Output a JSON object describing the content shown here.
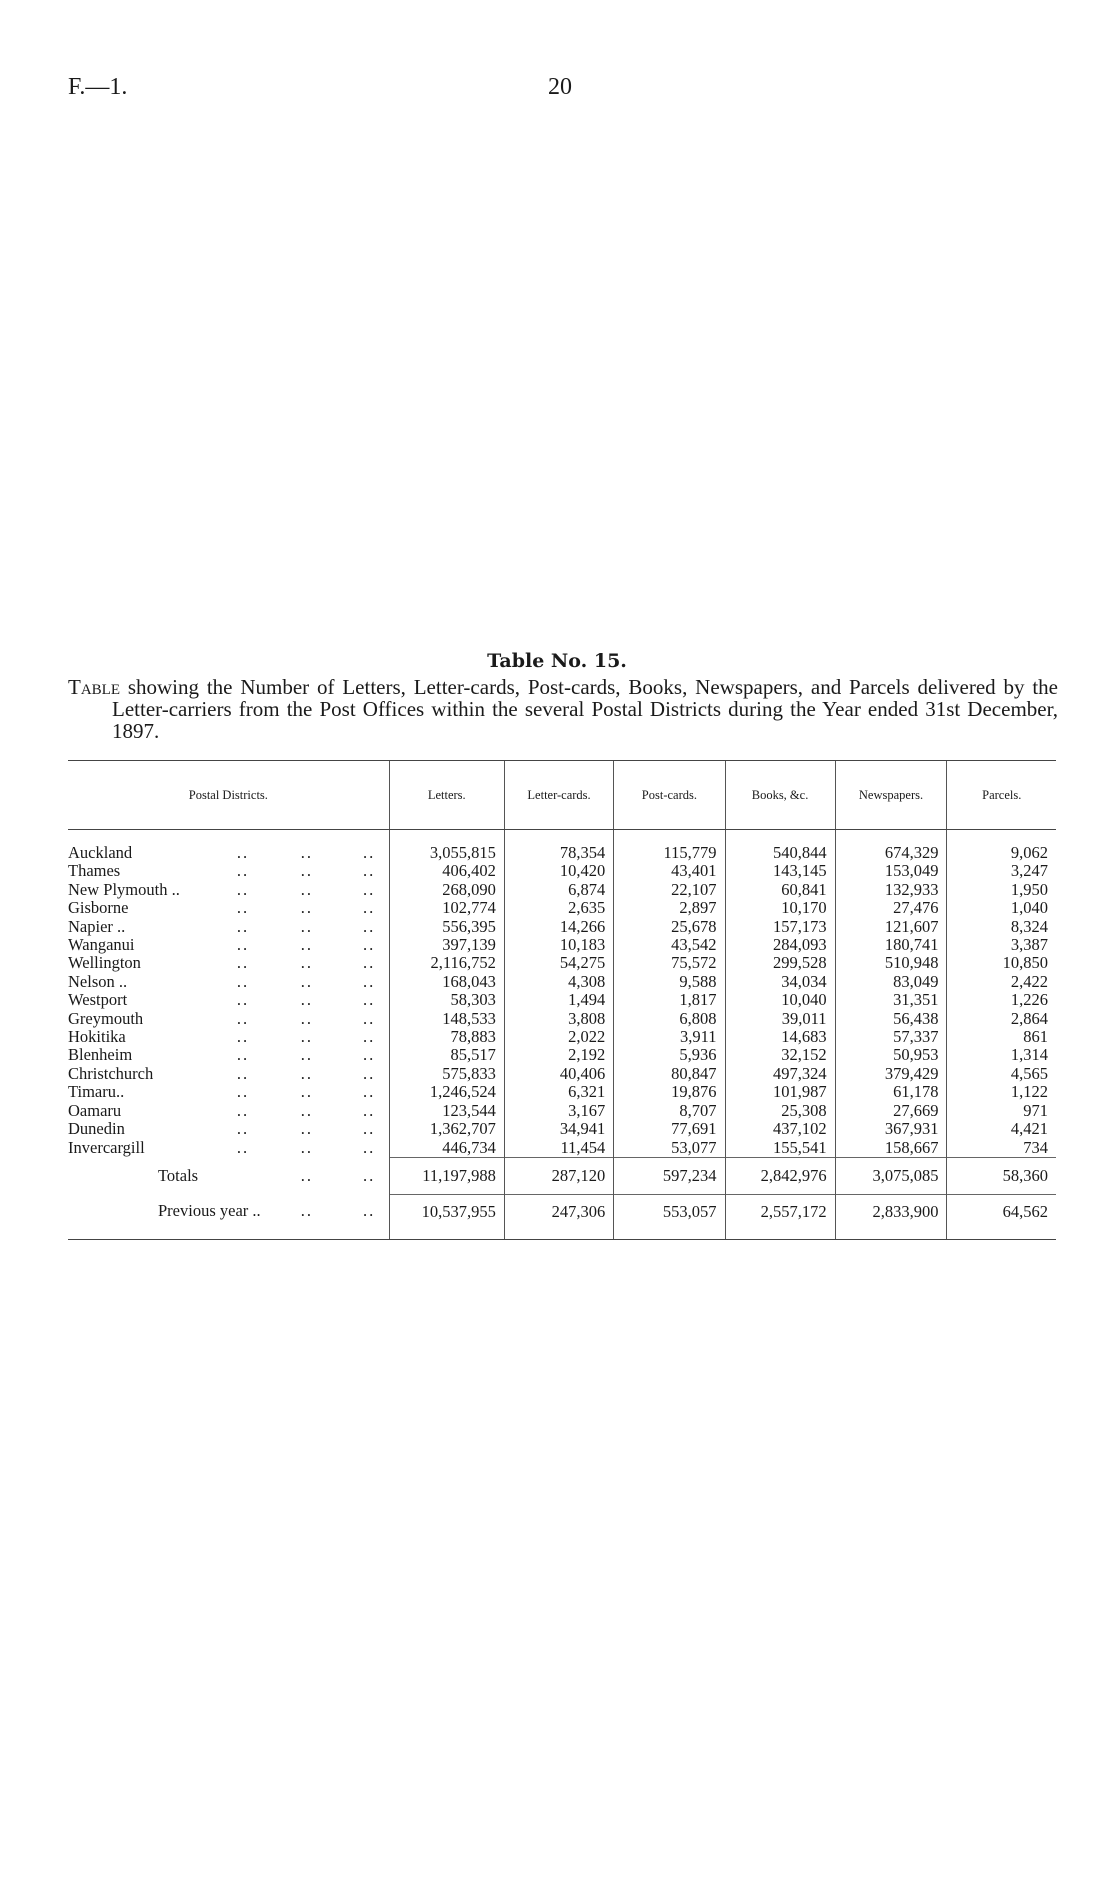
{
  "header": {
    "ref": "F.—1.",
    "page": "20"
  },
  "table_title": "Table No. 15.",
  "caption": {
    "lead": "Table",
    "text": " showing the Number of Letters, Letter-cards, Post-cards, Books, Newspapers, and Parcels delivered by the Letter-carriers from the Post Offices within the several Postal Districts during the Year ended 31st December, 1897."
  },
  "columns": [
    "Postal Districts.",
    "Letters.",
    "Letter-cards.",
    "Post-cards.",
    "Books, &c.",
    "Newspapers.",
    "Parcels."
  ],
  "rows": [
    {
      "district": "Auckland",
      "values": [
        "3,055,815",
        "78,354",
        "115,779",
        "540,844",
        "674,329",
        "9,062"
      ]
    },
    {
      "district": "Thames",
      "values": [
        "406,402",
        "10,420",
        "43,401",
        "143,145",
        "153,049",
        "3,247"
      ]
    },
    {
      "district": "New Plymouth ..",
      "values": [
        "268,090",
        "6,874",
        "22,107",
        "60,841",
        "132,933",
        "1,950"
      ]
    },
    {
      "district": "Gisborne",
      "values": [
        "102,774",
        "2,635",
        "2,897",
        "10,170",
        "27,476",
        "1,040"
      ]
    },
    {
      "district": "Napier ..",
      "values": [
        "556,395",
        "14,266",
        "25,678",
        "157,173",
        "121,607",
        "8,324"
      ]
    },
    {
      "district": "Wanganui",
      "values": [
        "397,139",
        "10,183",
        "43,542",
        "284,093",
        "180,741",
        "3,387"
      ]
    },
    {
      "district": "Wellington",
      "values": [
        "2,116,752",
        "54,275",
        "75,572",
        "299,528",
        "510,948",
        "10,850"
      ]
    },
    {
      "district": "Nelson ..",
      "values": [
        "168,043",
        "4,308",
        "9,588",
        "34,034",
        "83,049",
        "2,422"
      ]
    },
    {
      "district": "Westport",
      "values": [
        "58,303",
        "1,494",
        "1,817",
        "10,040",
        "31,351",
        "1,226"
      ]
    },
    {
      "district": "Greymouth",
      "values": [
        "148,533",
        "3,808",
        "6,808",
        "39,011",
        "56,438",
        "2,864"
      ]
    },
    {
      "district": "Hokitika",
      "values": [
        "78,883",
        "2,022",
        "3,911",
        "14,683",
        "57,337",
        "861"
      ]
    },
    {
      "district": "Blenheim",
      "values": [
        "85,517",
        "2,192",
        "5,936",
        "32,152",
        "50,953",
        "1,314"
      ]
    },
    {
      "district": "Christchurch",
      "values": [
        "575,833",
        "40,406",
        "80,847",
        "497,324",
        "379,429",
        "4,565"
      ]
    },
    {
      "district": "Timaru..",
      "values": [
        "1,246,524",
        "6,321",
        "19,876",
        "101,987",
        "61,178",
        "1,122"
      ]
    },
    {
      "district": "Oamaru",
      "values": [
        "123,544",
        "3,167",
        "8,707",
        "25,308",
        "27,669",
        "971"
      ]
    },
    {
      "district": "Dunedin",
      "values": [
        "1,362,707",
        "34,941",
        "77,691",
        "437,102",
        "367,931",
        "4,421"
      ]
    },
    {
      "district": "Invercargill",
      "values": [
        "446,734",
        "11,454",
        "53,077",
        "155,541",
        "158,667",
        "734"
      ]
    }
  ],
  "totals": {
    "label": "Totals",
    "values": [
      "11,197,988",
      "287,120",
      "597,234",
      "2,842,976",
      "3,075,085",
      "58,360"
    ]
  },
  "previous_year": {
    "label": "Previous year ..",
    "values": [
      "10,537,955",
      "247,306",
      "553,057",
      "2,557,172",
      "2,833,900",
      "64,562"
    ]
  },
  "leader_dots": ".."
}
